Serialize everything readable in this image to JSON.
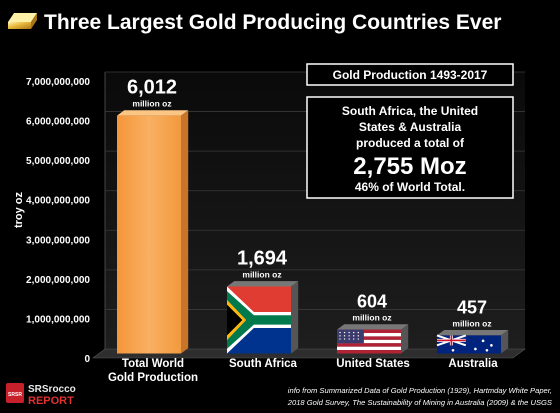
{
  "chart_data": {
    "type": "bar",
    "title": "Three Largest Gold Producing Countries Ever",
    "ylabel": "troy oz",
    "ylim": [
      0,
      7000000000
    ],
    "yticks": [
      "0",
      "1,000,000,000",
      "2,000,000,000",
      "3,000,000,000",
      "4,000,000,000",
      "5,000,000,000",
      "6,000,000,000",
      "7,000,000,000"
    ],
    "categories": [
      "Total World Gold Production",
      "South Africa",
      "United States",
      "Australia"
    ],
    "category_lines": [
      [
        "Total World",
        "Gold Production"
      ],
      [
        "South Africa"
      ],
      [
        "United States"
      ],
      [
        "Australia"
      ]
    ],
    "values": [
      6012000000,
      1694000000,
      604000000,
      457000000
    ],
    "value_labels": [
      "6,012",
      "1,694",
      "604",
      "457"
    ],
    "value_units": [
      "million oz",
      "million oz",
      "million oz",
      "million oz"
    ],
    "bar_fills": [
      "orange-3d",
      "flag-south-africa",
      "flag-united-states",
      "flag-australia"
    ],
    "grid": true,
    "colors": {
      "bar": "#f7a445",
      "bar_side": "#c8742a",
      "floor": "#2e2e2e",
      "wall": "#151515",
      "title_box_border": "#ffffff"
    }
  },
  "annotation": {
    "header": "Gold Production 1493-2017",
    "line1": "South Africa, the United",
    "line2": "States & Australia",
    "line3": "produced a total of",
    "big": "2,755 Moz",
    "line4": "46% of World Total."
  },
  "logo": {
    "line1": "SRSrocco",
    "line2": "REPORT",
    "badge": "SRSR"
  },
  "source": {
    "line1": "info from Summarized Data of Gold Production (1929), Hartmday White Paper,",
    "line2": "2018 Gold Survey, The Sustainability of Mining in Australia (2009) & the USGS"
  }
}
